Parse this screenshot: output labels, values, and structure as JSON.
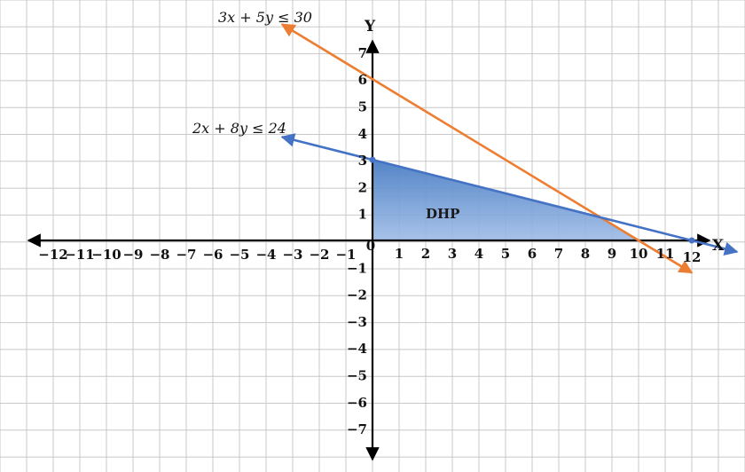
{
  "axes": {
    "x_name": "X",
    "y_name": "Y",
    "x_ticks_neg": [
      "−12",
      "−11",
      "−10",
      "−9",
      "−8",
      "−7",
      "−6",
      "−5",
      "−4",
      "−3",
      "−2",
      "−1"
    ],
    "x_ticks_pos": [
      "1",
      "2",
      "3",
      "4",
      "5",
      "6",
      "7",
      "8",
      "9",
      "10",
      "11",
      "12"
    ],
    "y_ticks_pos": [
      "1",
      "2",
      "3",
      "4",
      "5",
      "6",
      "7"
    ],
    "y_ticks_neg": [
      "−1",
      "−2",
      "−3",
      "−4",
      "−5",
      "−6",
      "−7"
    ],
    "origin": "0"
  },
  "constraints": [
    {
      "label": "3x + 5y ≤ 30",
      "color": "#ed7d31",
      "x_intercept": 10,
      "y_intercept": 6
    },
    {
      "label": "2x + 8y ≤ 24",
      "color": "#4472c4",
      "x_intercept": 12,
      "y_intercept": 3
    }
  ],
  "region": {
    "label": "DHP",
    "color": "#4a7ec4"
  },
  "colors": {
    "grid": "#c8c8c8",
    "axis": "#000000"
  }
}
